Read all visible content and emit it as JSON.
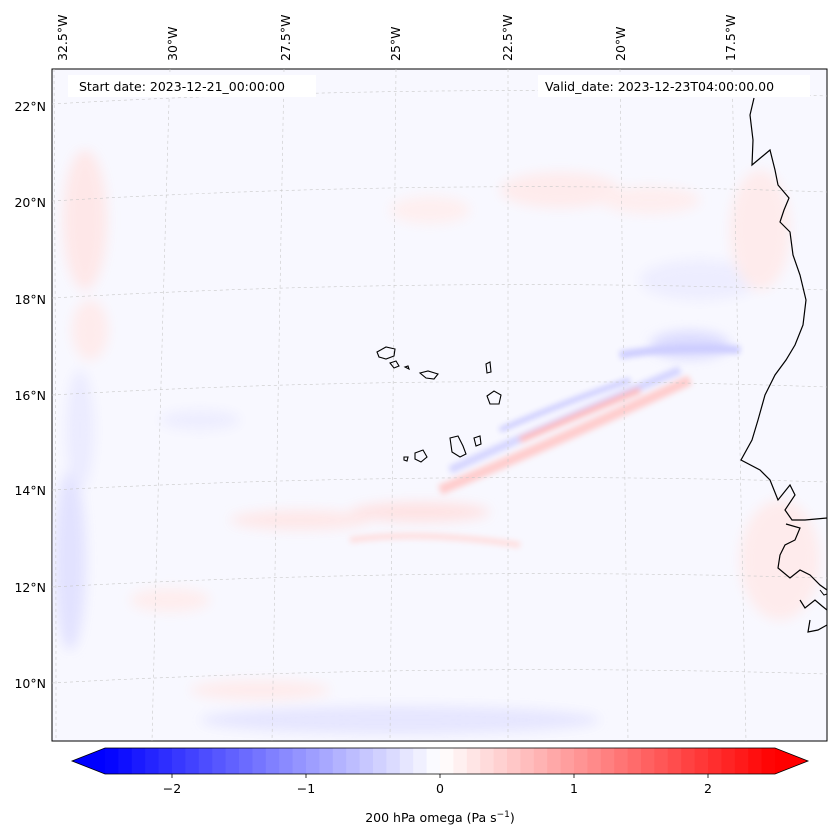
{
  "header": {
    "start_date": "Start date: 2023-12-21_00:00:00",
    "valid_date": "Valid_date: 2023-12-23T04:00:00.00"
  },
  "longitude_labels": [
    "32.5°W",
    "30°W",
    "27.5°W",
    "25°W",
    "22.5°W",
    "20°W",
    "17.5°W"
  ],
  "latitude_labels": [
    "22°N",
    "20°N",
    "18°N",
    "16°N",
    "14°N",
    "12°N",
    "10°N"
  ],
  "colorbar": {
    "tick_labels": [
      "−2",
      "−1",
      "0",
      "1",
      "2"
    ],
    "tick_values": [
      -2,
      -1,
      0,
      1,
      2
    ],
    "range": [
      -2.5,
      2.5
    ],
    "label_main": "200 hPa omega (Pa s",
    "label_exp": "−1",
    "label_close": ")",
    "low_color": "#0000ff",
    "mid_color": "#ffffff",
    "high_color": "#ff0000"
  },
  "colors": {
    "coast": "#000000",
    "gridline": "#bbbbbb",
    "background_field": "#f8f8ff"
  }
}
